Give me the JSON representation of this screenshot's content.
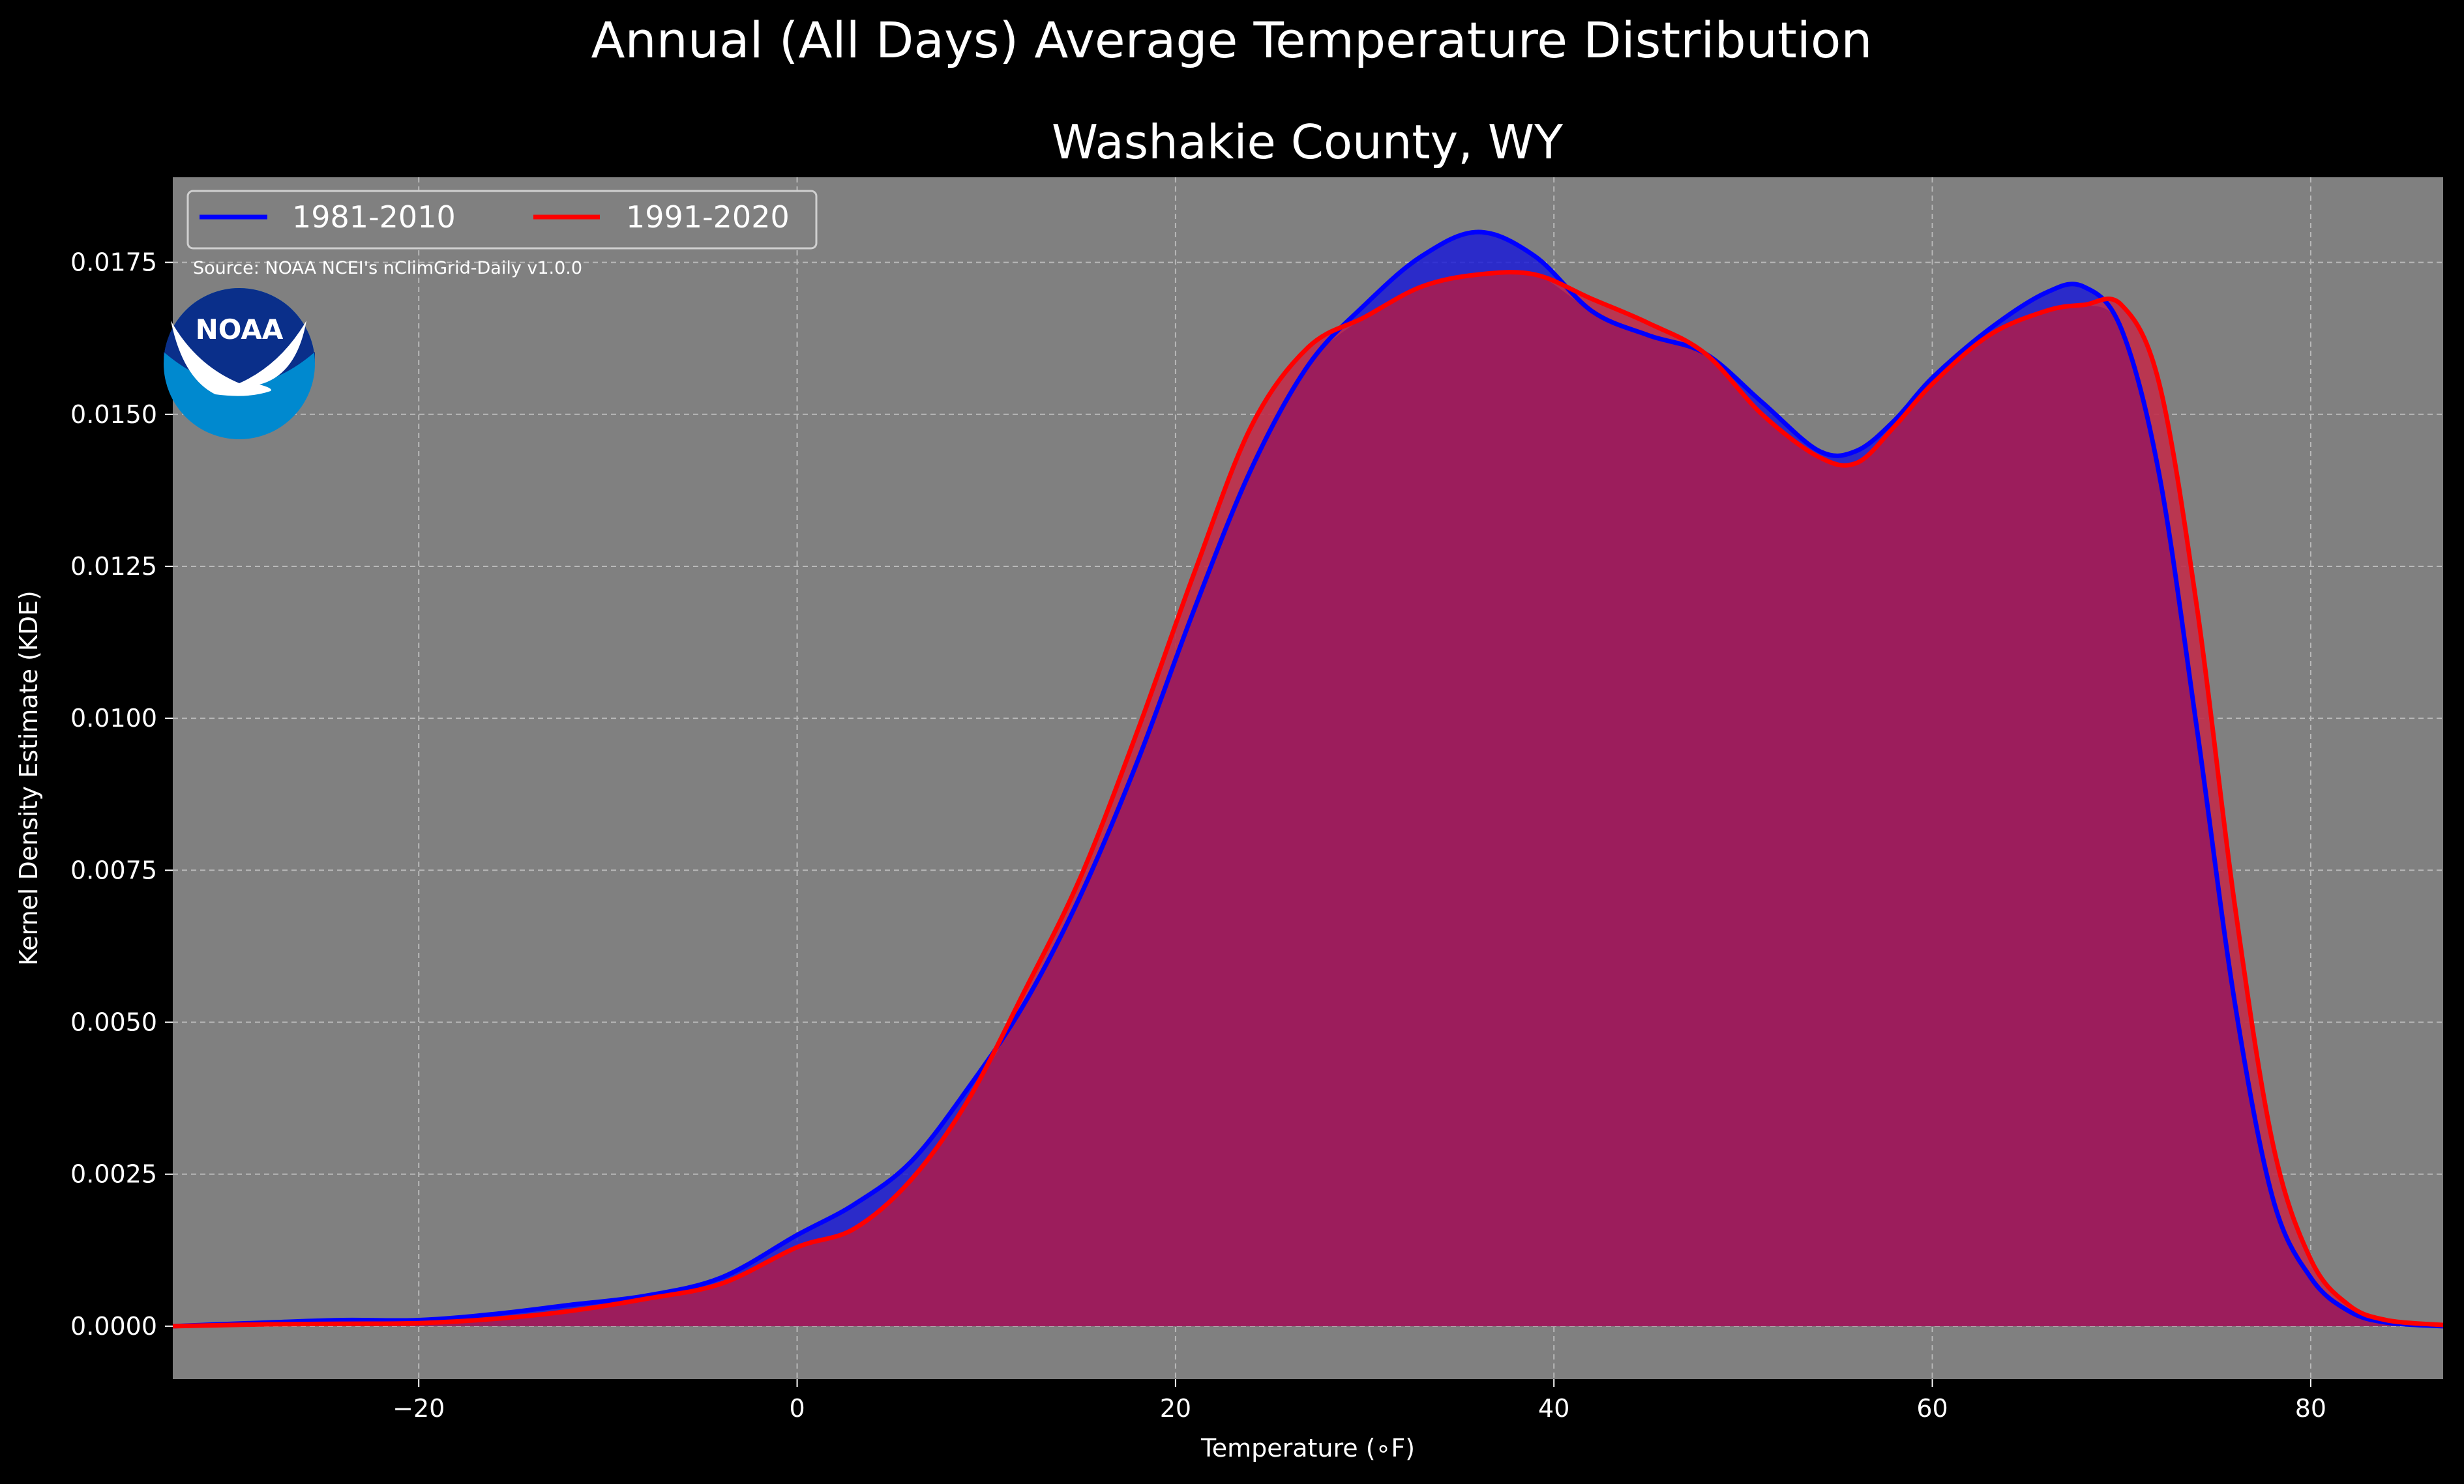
{
  "figure": {
    "suptitle": "Annual (All Days) Average Temperature Distribution",
    "source_note": "Source: NOAA NCEI's nClimGrid-Daily v1.0.0",
    "logo_text": "NOAA"
  },
  "colors": {
    "background": "#000000",
    "axes_bg": "#808080",
    "text": "#ffffff",
    "series_1981": "#0000ff",
    "series_1991": "#ff0000",
    "fill_1981": "#1c1cd6",
    "fill_overlap": "#9c1d5c",
    "fill_1991_only": "#c02e4a",
    "logo_blue": "#0089cf",
    "logo_navy": "#0a2f8a"
  },
  "chart_data": {
    "type": "area",
    "title": "Washakie County, WY",
    "xlabel": "Temperature ($^\\circ$F)",
    "xlabel_display": "Temperature (∘F)",
    "ylabel": "Kernel Density Estimate (KDE)",
    "xlim": [
      -33,
      87
    ],
    "ylim": [
      -0.00087,
      0.0189
    ],
    "xticks": [
      -20,
      0,
      20,
      40,
      60,
      80
    ],
    "xtick_labels": [
      "−20",
      "0",
      "20",
      "40",
      "60",
      "80"
    ],
    "yticks": [
      0,
      0.0025,
      0.005,
      0.0075,
      0.01,
      0.0125,
      0.015,
      0.0175
    ],
    "ytick_labels": [
      "0.0000",
      "0.0025",
      "0.0050",
      "0.0075",
      "0.0100",
      "0.0125",
      "0.0150",
      "0.0175"
    ],
    "grid": true,
    "legend": {
      "position": "top-left",
      "columns": 2
    },
    "x": [
      -33,
      -28,
      -24,
      -20,
      -16,
      -12,
      -8,
      -4,
      0,
      3,
      6,
      9,
      12,
      15,
      18,
      21,
      24,
      27,
      30,
      33,
      36,
      39,
      42,
      45,
      48,
      51,
      54,
      56,
      58,
      60,
      63,
      66,
      68,
      70,
      72,
      74,
      76,
      78,
      80,
      82,
      84,
      87
    ],
    "series": [
      {
        "name": "1981-2010",
        "values": [
          0.0,
          6e-05,
          0.0001,
          0.0001,
          0.0002,
          0.00035,
          0.0005,
          0.0008,
          0.0015,
          0.002,
          0.0027,
          0.0039,
          0.0053,
          0.0071,
          0.0093,
          0.0118,
          0.0141,
          0.0158,
          0.0168,
          0.0176,
          0.018,
          0.0176,
          0.0167,
          0.0163,
          0.016,
          0.0152,
          0.0144,
          0.0144,
          0.0149,
          0.0156,
          0.0164,
          0.017,
          0.0171,
          0.0164,
          0.014,
          0.0098,
          0.0053,
          0.0021,
          0.0008,
          0.00025,
          6e-05,
          0.0
        ]
      },
      {
        "name": "1991-2020",
        "values": [
          0.0,
          3e-05,
          4e-05,
          5e-05,
          0.00012,
          0.00025,
          0.00045,
          0.0007,
          0.0013,
          0.0016,
          0.0024,
          0.0037,
          0.0055,
          0.0074,
          0.0098,
          0.0124,
          0.0148,
          0.0161,
          0.0166,
          0.0171,
          0.0173,
          0.0173,
          0.0169,
          0.0165,
          0.016,
          0.015,
          0.0143,
          0.0142,
          0.0148,
          0.0155,
          0.0163,
          0.0167,
          0.0168,
          0.0168,
          0.0155,
          0.0118,
          0.0069,
          0.003,
          0.0011,
          0.00035,
          0.0001,
          2e-05
        ]
      }
    ]
  }
}
